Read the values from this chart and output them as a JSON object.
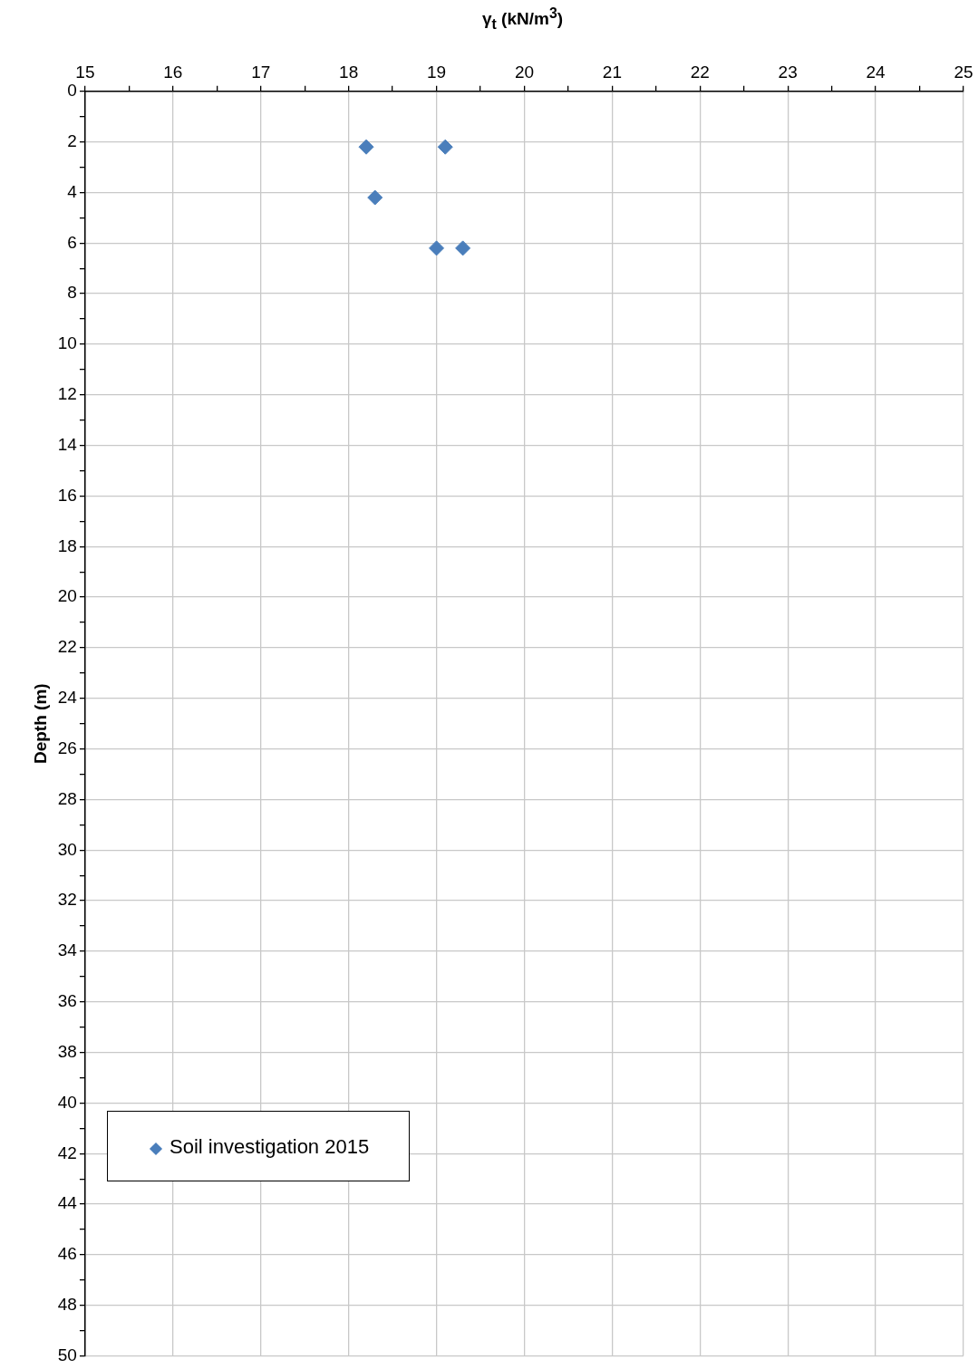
{
  "chart_data": {
    "type": "scatter",
    "xlabel": "γ$_{t}$ (kN/m$^{3}$)",
    "ylabel": "Depth (m)",
    "series": [
      {
        "name": "Soil investigation 2015",
        "color": "#4a7ebb",
        "x": [
          18.2,
          19.1,
          18.3,
          19.0,
          19.3
        ],
        "values": [
          2.2,
          2.2,
          4.2,
          6.2,
          6.2
        ]
      }
    ],
    "xlim": [
      15,
      25
    ],
    "ylim": [
      50,
      0
    ],
    "xticks": [
      15,
      {
        "value": 15.5,
        "label": null
      },
      16,
      {
        "value": 16.5,
        "label": null
      },
      17,
      {
        "value": 17.5,
        "label": null
      },
      18,
      {
        "value": 18.5,
        "label": null
      },
      19,
      {
        "value": 19.5,
        "label": null
      },
      20,
      {
        "value": 20.5,
        "label": null
      },
      21,
      {
        "value": 21.5,
        "label": null
      },
      22,
      {
        "value": 22.5,
        "label": null
      },
      23,
      {
        "value": 23.5,
        "label": null
      },
      24,
      {
        "value": 24.5,
        "label": null
      },
      25
    ],
    "yticks": [
      0,
      {
        "value": 1,
        "label": null
      },
      2,
      {
        "value": 3,
        "label": null
      },
      4,
      {
        "value": 5,
        "label": null
      },
      6,
      {
        "value": 7,
        "label": null
      },
      8,
      {
        "value": 9,
        "label": null
      },
      10,
      {
        "value": 11,
        "label": null
      },
      12,
      {
        "value": 13,
        "label": null
      },
      14,
      {
        "value": 15,
        "label": null
      },
      16,
      {
        "value": 17,
        "label": null
      },
      18,
      {
        "value": 19,
        "label": null
      },
      20,
      {
        "value": 21,
        "label": null
      },
      22,
      {
        "value": 23,
        "label": null
      },
      24,
      {
        "value": 25,
        "label": null
      },
      26,
      {
        "value": 27,
        "label": null
      },
      28,
      {
        "value": 29,
        "label": null
      },
      30,
      {
        "value": 31,
        "label": null
      },
      32,
      {
        "value": 33,
        "label": null
      },
      34,
      {
        "value": 35,
        "label": null
      },
      36,
      {
        "value": 37,
        "label": null
      },
      38,
      {
        "value": 39,
        "label": null
      },
      40,
      {
        "value": 41,
        "label": null
      },
      42,
      {
        "value": 43,
        "label": null
      },
      44,
      {
        "value": 45,
        "label": null
      },
      46,
      {
        "value": 47,
        "label": null
      },
      48,
      {
        "value": 49,
        "label": null
      },
      50
    ],
    "grid": true,
    "legend": "bottom left",
    "marker": "diamond"
  }
}
